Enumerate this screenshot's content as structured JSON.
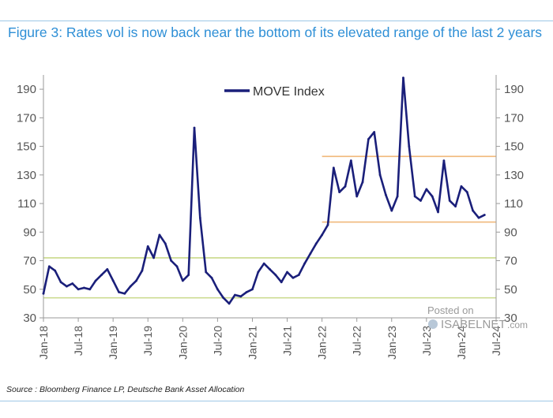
{
  "title": "Figure 3: Rates vol is now back near the bottom of its elevated range of the last 2 years",
  "source": "Source : Bloomberg Finance LP, Deutsche Bank Asset Allocation",
  "watermark": {
    "line1": "Posted on",
    "line2": "ISABELNET",
    "line3": ".com"
  },
  "colors": {
    "series": "#1a1f7a",
    "band_green": "#c9d98a",
    "band_orange": "#f0b87a",
    "title": "#2e8fd6",
    "axis": "#9a9a9a"
  },
  "chart_data": {
    "type": "line",
    "title": "Figure 3: Rates vol is now back near the bottom of its elevated range of the last 2 years",
    "xlabel": "",
    "ylabel": "",
    "ylim": [
      30,
      200
    ],
    "yticks": [
      30,
      50,
      70,
      90,
      110,
      130,
      150,
      170,
      190
    ],
    "xlim": [
      "2018-01",
      "2024-07"
    ],
    "xticks": [
      "Jan-18",
      "Jul-18",
      "Jan-19",
      "Jul-19",
      "Jan-20",
      "Jul-20",
      "Jan-21",
      "Jul-21",
      "Jan-22",
      "Jul-22",
      "Jan-23",
      "Jul-23",
      "Jan-24",
      "Jul-24"
    ],
    "legend": {
      "position": "top-center",
      "entries": [
        "MOVE Index"
      ]
    },
    "reference_lines": [
      {
        "y": 44,
        "x_from": "2018-01",
        "x_to": "2024-07",
        "color": "band_green"
      },
      {
        "y": 72,
        "x_from": "2018-01",
        "x_to": "2024-07",
        "color": "band_green"
      },
      {
        "y": 97,
        "x_from": "2022-01",
        "x_to": "2024-07",
        "color": "band_orange"
      },
      {
        "y": 143,
        "x_from": "2022-01",
        "x_to": "2024-07",
        "color": "band_orange"
      }
    ],
    "series": [
      {
        "name": "MOVE Index",
        "x": [
          "2018-01",
          "2018-02",
          "2018-03",
          "2018-04",
          "2018-05",
          "2018-06",
          "2018-07",
          "2018-08",
          "2018-09",
          "2018-10",
          "2018-11",
          "2018-12",
          "2019-01",
          "2019-02",
          "2019-03",
          "2019-04",
          "2019-05",
          "2019-06",
          "2019-07",
          "2019-08",
          "2019-09",
          "2019-10",
          "2019-11",
          "2019-12",
          "2020-01",
          "2020-02",
          "2020-03",
          "2020-04",
          "2020-05",
          "2020-06",
          "2020-07",
          "2020-08",
          "2020-09",
          "2020-10",
          "2020-11",
          "2020-12",
          "2021-01",
          "2021-02",
          "2021-03",
          "2021-04",
          "2021-05",
          "2021-06",
          "2021-07",
          "2021-08",
          "2021-09",
          "2021-10",
          "2021-11",
          "2021-12",
          "2022-01",
          "2022-02",
          "2022-03",
          "2022-04",
          "2022-05",
          "2022-06",
          "2022-07",
          "2022-08",
          "2022-09",
          "2022-10",
          "2022-11",
          "2022-12",
          "2023-01",
          "2023-02",
          "2023-03",
          "2023-04",
          "2023-05",
          "2023-06",
          "2023-07",
          "2023-08",
          "2023-09",
          "2023-10",
          "2023-11",
          "2023-12",
          "2024-01",
          "2024-02",
          "2024-03",
          "2024-04",
          "2024-05"
        ],
        "values": [
          47,
          66,
          63,
          55,
          52,
          54,
          50,
          51,
          50,
          56,
          60,
          64,
          56,
          48,
          47,
          52,
          56,
          63,
          80,
          72,
          88,
          82,
          70,
          66,
          56,
          60,
          163,
          100,
          62,
          58,
          50,
          44,
          40,
          46,
          45,
          48,
          50,
          62,
          68,
          64,
          60,
          55,
          62,
          58,
          60,
          68,
          75,
          82,
          88,
          95,
          135,
          118,
          122,
          140,
          115,
          125,
          155,
          160,
          130,
          116,
          105,
          115,
          198,
          150,
          115,
          112,
          120,
          115,
          104,
          140,
          112,
          108,
          122,
          118,
          105,
          100,
          102
        ]
      }
    ]
  }
}
